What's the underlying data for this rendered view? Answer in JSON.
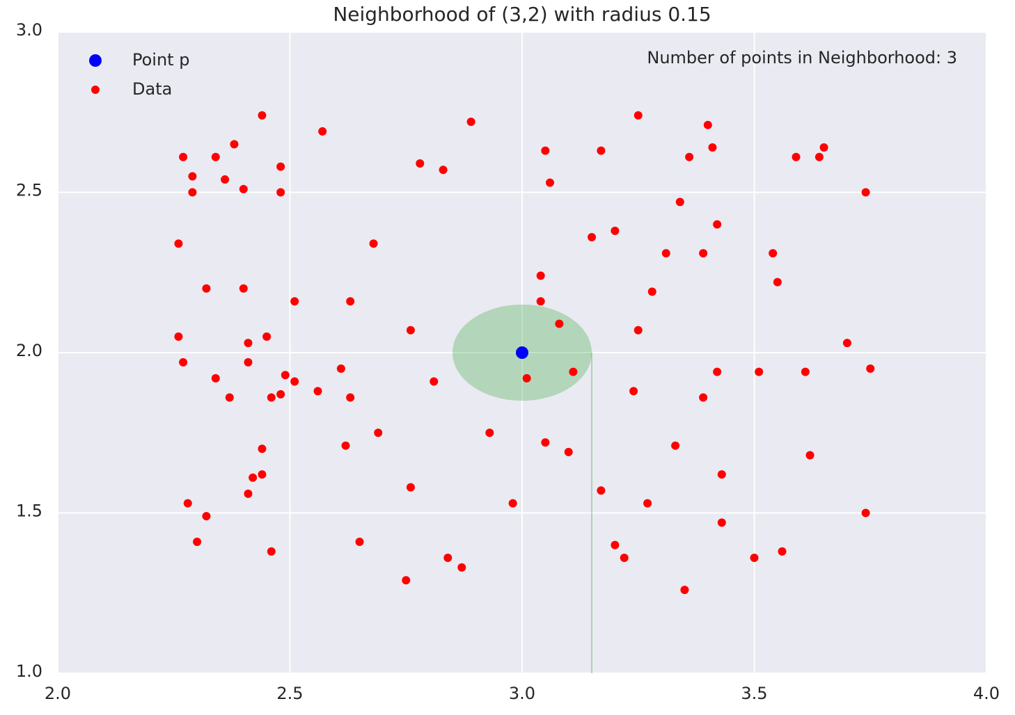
{
  "chart_data": {
    "type": "scatter",
    "title": "Neighborhood of (3,2) with radius 0.15",
    "annotation": "Number of points in Neighborhood: 3",
    "xlim": [
      2,
      4
    ],
    "ylim": [
      1,
      3
    ],
    "xticks": [
      {
        "value": 2,
        "label": "2.0"
      },
      2.5,
      {
        "value": 3,
        "label": "3.0"
      },
      3.5,
      {
        "value": 4,
        "label": "4.0"
      }
    ],
    "yticks": [
      {
        "value": 1,
        "label": "1.0"
      },
      1.5,
      {
        "value": 2,
        "label": "2.0"
      },
      2.5,
      {
        "value": 3,
        "label": "3.0"
      }
    ],
    "grid": true,
    "legend": "upper left",
    "neighborhood": {
      "center": [
        3,
        2
      ],
      "radius": 0.15,
      "color": "#4caf50"
    },
    "series": [
      {
        "name": "Point p",
        "color": "#0000ff",
        "x": [
          3
        ],
        "values": [
          2
        ]
      },
      {
        "name": "Data",
        "color": "#ff0000",
        "x": [
          2.44,
          2.27,
          2.34,
          2.38,
          2.29,
          2.36,
          2.4,
          2.48,
          2.29,
          2.48,
          2.57,
          2.89,
          2.78,
          2.83,
          3.05,
          3.06,
          3.17,
          3.25,
          3.4,
          3.41,
          3.36,
          3.59,
          3.64,
          3.65,
          3.74,
          3.34,
          3.42,
          3.2,
          3.15,
          3.31,
          3.39,
          3.54,
          3.55,
          2.26,
          2.68,
          2.32,
          2.4,
          2.51,
          2.63,
          3.04,
          3.04,
          3.28,
          3.08,
          2.76,
          3.25,
          2.26,
          2.41,
          2.45,
          3.7,
          2.27,
          2.41,
          2.61,
          3.75,
          2.34,
          2.49,
          2.51,
          2.81,
          3.01,
          3.11,
          3.42,
          3.51,
          3.61,
          2.56,
          2.37,
          2.46,
          2.48,
          2.63,
          3.24,
          3.39,
          2.69,
          2.93,
          2.62,
          2.44,
          3.05,
          3.1,
          3.33,
          3.62,
          2.44,
          2.42,
          3.43,
          2.41,
          2.76,
          3.17,
          2.28,
          2.98,
          3.27,
          3.74,
          2.32,
          3.43,
          2.3,
          2.65,
          3.2,
          2.46,
          3.56,
          2.84,
          3.22,
          3.5,
          2.87,
          2.75,
          3.35
        ],
        "values": [
          2.74,
          2.61,
          2.61,
          2.65,
          2.55,
          2.54,
          2.51,
          2.58,
          2.5,
          2.5,
          2.69,
          2.72,
          2.59,
          2.57,
          2.63,
          2.53,
          2.63,
          2.74,
          2.71,
          2.64,
          2.61,
          2.61,
          2.61,
          2.64,
          2.5,
          2.47,
          2.4,
          2.38,
          2.36,
          2.31,
          2.31,
          2.31,
          2.22,
          2.34,
          2.34,
          2.2,
          2.2,
          2.16,
          2.16,
          2.24,
          2.16,
          2.19,
          2.09,
          2.07,
          2.07,
          2.05,
          2.03,
          2.05,
          2.03,
          1.97,
          1.97,
          1.95,
          1.95,
          1.92,
          1.93,
          1.91,
          1.91,
          1.92,
          1.94,
          1.94,
          1.94,
          1.94,
          1.88,
          1.86,
          1.86,
          1.87,
          1.86,
          1.88,
          1.86,
          1.75,
          1.75,
          1.71,
          1.7,
          1.72,
          1.69,
          1.71,
          1.68,
          1.62,
          1.61,
          1.62,
          1.56,
          1.58,
          1.57,
          1.53,
          1.53,
          1.53,
          1.5,
          1.49,
          1.47,
          1.41,
          1.41,
          1.4,
          1.38,
          1.38,
          1.36,
          1.36,
          1.36,
          1.33,
          1.29,
          1.26
        ]
      }
    ]
  }
}
